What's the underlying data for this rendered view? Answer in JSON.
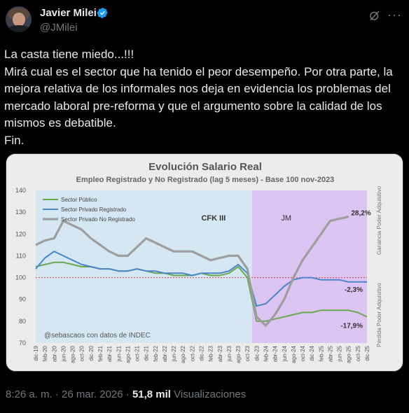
{
  "author": {
    "name": "Javier Milei",
    "handle": "@JMilei"
  },
  "tweet": {
    "lines": [
      "La casta tiene miedo...!!!",
      "Mirá cual es el sector que ha tenido el peor desempeño. Por otra parte, la",
      "mejora relativa de los informales nos deja en evidencia los problemas del",
      "mercado laboral pre-reforma y que el argumento sobre la calidad de los",
      "mismos es debatible.",
      "Fin."
    ]
  },
  "meta": {
    "time": "8:26 a. m. · 26 mar. 2026 ·",
    "views_count": "51,8 mil",
    "views_label": "Visualizaciones"
  },
  "icons": {
    "verified": "verified-badge-icon",
    "grok": "grok-icon",
    "more": "more-icon"
  },
  "chart_data": {
    "type": "line",
    "title": "Evolución Salario Real",
    "subtitle": "Empleo Registrado y No Registrado (lag 5 meses) - Base 100 nov-2023",
    "ylim": [
      70,
      140
    ],
    "yticks": [
      70,
      80,
      90,
      100,
      110,
      120,
      130,
      140
    ],
    "x_ticks": [
      "dic-19",
      "feb-20",
      "abr-20",
      "jun-20",
      "ago-20",
      "oct-20",
      "dic-20",
      "feb-21",
      "abr-21",
      "jun-21",
      "ago-21",
      "oct-21",
      "dic-21",
      "feb-22",
      "abr-22",
      "jun-22",
      "ago-22",
      "oct-22",
      "dic-22",
      "feb-23",
      "abr-23",
      "jun-23",
      "ago-23",
      "oct-23",
      "dic-23",
      "feb-24",
      "abr-24",
      "jun-24",
      "ago-24",
      "oct-24",
      "dic-24",
      "feb-25",
      "abr-25",
      "jun-25",
      "ago-25",
      "oct-25",
      "dic-25"
    ],
    "base_line": 100,
    "periods": [
      {
        "label": "CFK III",
        "start": "dic-19",
        "end": "nov-23"
      },
      {
        "label": "JM",
        "start": "nov-23",
        "end": "dic-25"
      }
    ],
    "side_labels": {
      "top": "Ganancia Poder Adquisitivo",
      "bottom": "Pérdida Poder Adquisitivo"
    },
    "source": "@sebascaos con datos de INDEC",
    "colors": {
      "Sector Público": "#6aa84f",
      "Sector Privado Registrado": "#4a86c8",
      "Sector Privado No Registrado": "#9e9e9e",
      "cfk_bg": "#d4e7f2",
      "jm_bg": "#ddc5f3",
      "base_line": "#d64545"
    },
    "series": [
      {
        "name": "Sector Público",
        "end_label": "-17,9%",
        "values": [
          105,
          106,
          107,
          107,
          106,
          105,
          105,
          104,
          104,
          103,
          103,
          104,
          103,
          102,
          102,
          101,
          101,
          101,
          102,
          101,
          101,
          102,
          105,
          100,
          80,
          80,
          81,
          82,
          83,
          84,
          84,
          85,
          85,
          85,
          85,
          84,
          82
        ]
      },
      {
        "name": "Sector Privado Registrado",
        "end_label": "-2,3%",
        "values": [
          104,
          109,
          112,
          110,
          108,
          106,
          105,
          104,
          104,
          103,
          103,
          104,
          103,
          103,
          102,
          102,
          102,
          101,
          102,
          102,
          102,
          103,
          106,
          102,
          87,
          88,
          92,
          96,
          99,
          100,
          100,
          99,
          99,
          99,
          98,
          98,
          98
        ]
      },
      {
        "name": "Sector Privado No Registrado",
        "end_label": "28,2%",
        "values": [
          115,
          117,
          118,
          126,
          124,
          122,
          118,
          115,
          112,
          110,
          110,
          114,
          118,
          116,
          114,
          112,
          112,
          112,
          110,
          108,
          109,
          110,
          110,
          104,
          82,
          78,
          83,
          90,
          100,
          108,
          114,
          120,
          126,
          127,
          128,
          null,
          null
        ]
      }
    ]
  }
}
